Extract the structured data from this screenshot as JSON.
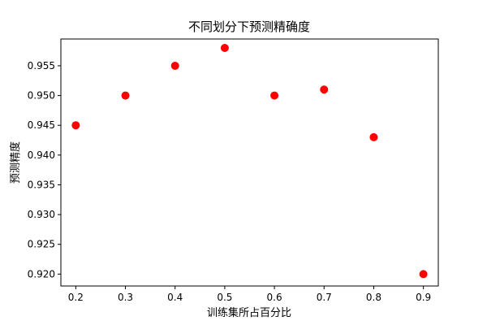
{
  "chart_data": {
    "type": "scatter",
    "title": "不同划分下预测精确度",
    "xlabel": "训练集所占百分比",
    "ylabel": "预测精度",
    "xlim": [
      0.17,
      0.93
    ],
    "ylim": [
      0.918,
      0.9595
    ],
    "x_ticks": [
      0.2,
      0.3,
      0.4,
      0.5,
      0.6,
      0.7,
      0.8,
      0.9
    ],
    "x_tick_labels": [
      "0.2",
      "0.3",
      "0.4",
      "0.5",
      "0.6",
      "0.7",
      "0.8",
      "0.9"
    ],
    "y_ticks": [
      0.92,
      0.925,
      0.93,
      0.935,
      0.94,
      0.945,
      0.95,
      0.955
    ],
    "y_tick_labels": [
      "0.920",
      "0.925",
      "0.930",
      "0.935",
      "0.940",
      "0.945",
      "0.950",
      "0.955"
    ],
    "grid": false,
    "series": [
      {
        "color": "#ff0000",
        "x": [
          0.2,
          0.3,
          0.4,
          0.5,
          0.6,
          0.7,
          0.8,
          0.9
        ],
        "y": [
          0.945,
          0.95,
          0.955,
          0.958,
          0.95,
          0.951,
          0.943,
          0.92
        ]
      }
    ]
  }
}
